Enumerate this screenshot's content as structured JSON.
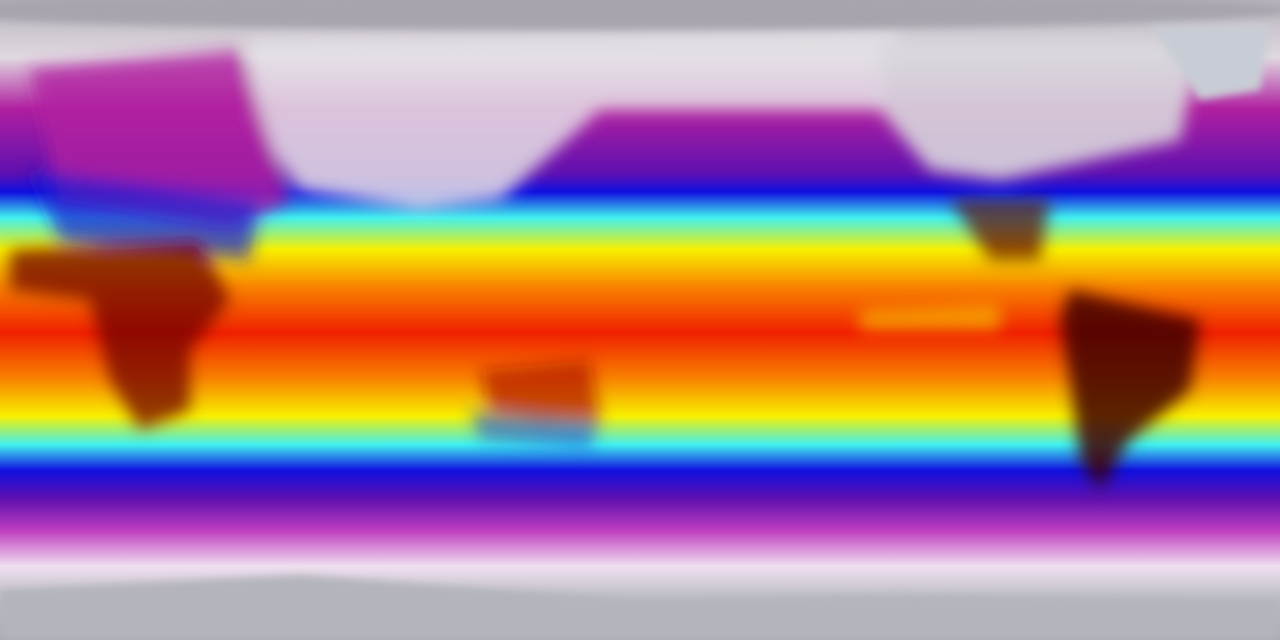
{
  "map": {
    "projection": "equirectangular",
    "variable": "temperature",
    "colors": {
      "polar": "#b8b4bc",
      "cold_pink": "#e8d8e8",
      "magenta": "#b020a0",
      "purple": "#6010b0",
      "blue": "#1010e0",
      "cyan": "#40f0f0",
      "yellow": "#f8f000",
      "orange": "#f88000",
      "red": "#f02000",
      "dark_red": "#500000"
    }
  }
}
